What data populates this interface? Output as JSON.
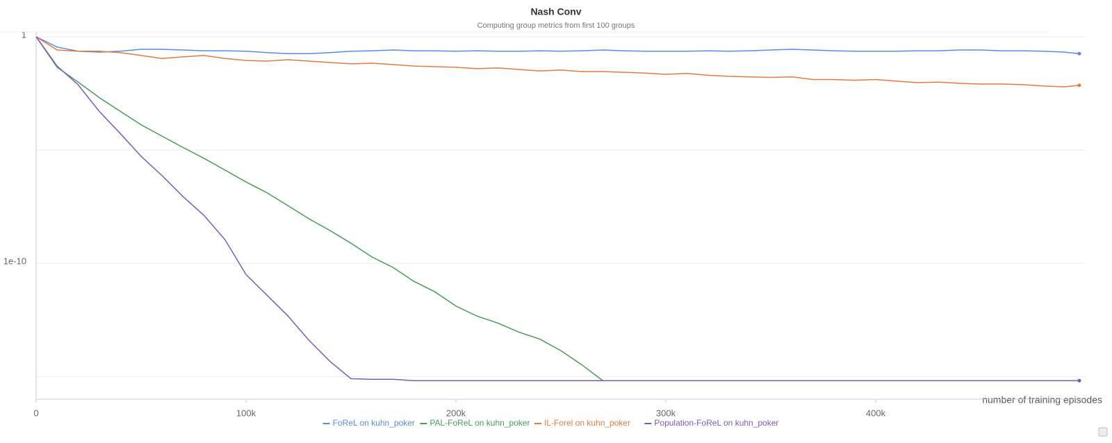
{
  "chart_data": {
    "type": "line",
    "title": "Nash Conv",
    "subtitle": "Computing group metrics from first 100 groups",
    "x_label": "number of training episodes",
    "log_y": true,
    "grid": true,
    "xlim": [
      0,
      500000
    ],
    "ylim": [
      1e-16,
      1.6
    ],
    "xticks": [
      0,
      {
        "value": 100000,
        "label": "100k"
      },
      {
        "value": 200000,
        "label": "200k"
      },
      {
        "value": 300000,
        "label": "300k"
      },
      {
        "value": 400000,
        "label": "400k"
      }
    ],
    "yticks": [
      1,
      {
        "value": 1e-05,
        "label": null
      },
      1e-10,
      {
        "value": 1e-15,
        "label": null
      }
    ],
    "x": [
      0,
      10000,
      20000,
      30000,
      40000,
      50000,
      60000,
      70000,
      80000,
      90000,
      100000,
      110000,
      120000,
      130000,
      140000,
      150000,
      160000,
      170000,
      180000,
      190000,
      200000,
      210000,
      220000,
      230000,
      240000,
      250000,
      260000,
      270000,
      280000,
      290000,
      300000,
      310000,
      320000,
      330000,
      340000,
      350000,
      360000,
      370000,
      380000,
      390000,
      400000,
      410000,
      420000,
      430000,
      440000,
      450000,
      460000,
      470000,
      480000,
      490000,
      497000
    ],
    "series": [
      {
        "name": "FoReL on kuhn_poker",
        "color": "#5b8bdc",
        "values": [
          1,
          0.35,
          0.23,
          0.21,
          0.23,
          0.28,
          0.28,
          0.26,
          0.24,
          0.24,
          0.23,
          0.2,
          0.18,
          0.18,
          0.2,
          0.23,
          0.24,
          0.26,
          0.24,
          0.24,
          0.23,
          0.24,
          0.23,
          0.23,
          0.24,
          0.23,
          0.24,
          0.26,
          0.24,
          0.23,
          0.23,
          0.23,
          0.24,
          0.23,
          0.24,
          0.26,
          0.28,
          0.26,
          0.24,
          0.23,
          0.23,
          0.23,
          0.24,
          0.24,
          0.26,
          0.26,
          0.24,
          0.24,
          0.23,
          0.21,
          0.18
        ]
      },
      {
        "name": "PAL-FoReL on kuhn_poker",
        "color": "#4a9a5c",
        "values": [
          1,
          0.045,
          0.01,
          0.0021,
          0.00052,
          0.00013,
          4.1e-05,
          1.3e-05,
          4.3e-06,
          1.3e-06,
          3.9e-07,
          1.3e-07,
          3.5e-08,
          9.2e-09,
          2.8e-09,
          7.7e-10,
          1.9e-10,
          6.6e-11,
          1.6e-11,
          5.5e-12,
          1.3e-12,
          4.7e-13,
          2.3e-13,
          9.2e-14,
          4.5e-14,
          1.4e-14,
          3.3e-15,
          6.6e-16,
          6.6e-16,
          6.6e-16,
          6.6e-16,
          6.6e-16,
          6.6e-16,
          6.6e-16,
          6.6e-16,
          6.6e-16,
          6.6e-16,
          6.6e-16,
          6.6e-16,
          6.6e-16,
          6.6e-16,
          6.6e-16,
          6.6e-16,
          6.6e-16,
          6.6e-16,
          6.6e-16,
          6.6e-16,
          6.6e-16,
          6.6e-16,
          6.6e-16,
          6.6e-16
        ]
      },
      {
        "name": "IL-Forel on kuhn_poker",
        "color": "#e07b45",
        "values": [
          1,
          0.26,
          0.23,
          0.23,
          0.2,
          0.15,
          0.11,
          0.13,
          0.15,
          0.11,
          0.09,
          0.084,
          0.097,
          0.084,
          0.073,
          0.064,
          0.068,
          0.059,
          0.051,
          0.048,
          0.045,
          0.039,
          0.042,
          0.036,
          0.031,
          0.034,
          0.029,
          0.029,
          0.027,
          0.025,
          0.022,
          0.024,
          0.02,
          0.018,
          0.017,
          0.016,
          0.017,
          0.013,
          0.013,
          0.012,
          0.013,
          0.011,
          0.0095,
          0.01,
          0.0088,
          0.0082,
          0.0082,
          0.0077,
          0.0067,
          0.0062,
          0.0072
        ]
      },
      {
        "name": "Population-FoReL on kuhn_poker",
        "color": "#7a5cb8",
        "values": [
          1,
          0.051,
          0.0076,
          0.00052,
          5.5e-05,
          5.3e-06,
          7.4e-07,
          8.8e-08,
          1.3e-08,
          1.1e-09,
          3.2e-11,
          3.9e-12,
          4.7e-13,
          4e-14,
          4.7e-15,
          8.1e-16,
          7.6e-16,
          7.6e-16,
          6.6e-16,
          6.6e-16,
          6.6e-16,
          6.6e-16,
          6.6e-16,
          6.6e-16,
          6.6e-16,
          6.6e-16,
          6.6e-16,
          6.6e-16,
          6.6e-16,
          6.6e-16,
          6.6e-16,
          6.6e-16,
          6.6e-16,
          6.6e-16,
          6.6e-16,
          6.6e-16,
          6.6e-16,
          6.6e-16,
          6.6e-16,
          6.6e-16,
          6.6e-16,
          6.6e-16,
          6.6e-16,
          6.6e-16,
          6.6e-16,
          6.6e-16,
          6.6e-16,
          6.6e-16,
          6.6e-16,
          6.6e-16,
          6.6e-16
        ]
      }
    ]
  }
}
